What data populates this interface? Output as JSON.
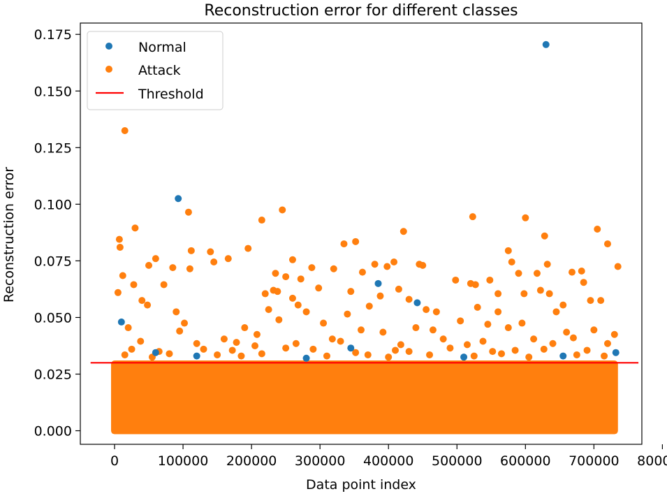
{
  "chart_data": {
    "type": "scatter",
    "title": "Reconstruction error for different classes",
    "xlabel": "Data point index",
    "ylabel": "Reconstruction error",
    "xlim": [
      -50000,
      770000
    ],
    "ylim": [
      -0.006,
      0.18
    ],
    "xticks": [
      0,
      100000,
      200000,
      300000,
      400000,
      500000,
      600000,
      700000,
      800000
    ],
    "xtick_labels": [
      "0",
      "100000",
      "200000",
      "300000",
      "400000",
      "500000",
      "600000",
      "700000",
      "800000"
    ],
    "yticks": [
      0.0,
      0.025,
      0.05,
      0.075,
      0.1,
      0.125,
      0.15,
      0.175
    ],
    "ytick_labels": [
      "0.000",
      "0.025",
      "0.050",
      "0.075",
      "0.100",
      "0.125",
      "0.150",
      "0.175"
    ],
    "grid": false,
    "legend_position": "top-left",
    "legend": [
      "Normal",
      "Attack",
      "Threshold"
    ],
    "dense_band": {
      "x": [
        0,
        730000
      ],
      "y": [
        0.0,
        0.031
      ],
      "series": "Attack"
    },
    "series": [
      {
        "name": "Normal",
        "color": "#1f77b4",
        "points": [
          [
            630000,
            0.1705
          ],
          [
            93000,
            0.1025
          ],
          [
            385000,
            0.065
          ],
          [
            10000,
            0.048
          ],
          [
            442000,
            0.0565
          ],
          [
            60000,
            0.0345
          ],
          [
            732000,
            0.0345
          ],
          [
            345000,
            0.0365
          ],
          [
            120000,
            0.033
          ],
          [
            280000,
            0.032
          ],
          [
            510000,
            0.0325
          ],
          [
            655000,
            0.033
          ]
        ]
      },
      {
        "name": "Attack",
        "color": "#ff7f0e",
        "points": [
          [
            15000,
            0.1325
          ],
          [
            245000,
            0.0975
          ],
          [
            108000,
            0.0965
          ],
          [
            215000,
            0.093
          ],
          [
            523000,
            0.0945
          ],
          [
            600000,
            0.094
          ],
          [
            30000,
            0.0895
          ],
          [
            705000,
            0.089
          ],
          [
            628000,
            0.086
          ],
          [
            422000,
            0.088
          ],
          [
            7000,
            0.0845
          ],
          [
            352000,
            0.0835
          ],
          [
            720000,
            0.0825
          ],
          [
            8000,
            0.081
          ],
          [
            195000,
            0.0805
          ],
          [
            335000,
            0.0825
          ],
          [
            112000,
            0.0795
          ],
          [
            140000,
            0.079
          ],
          [
            575000,
            0.0795
          ],
          [
            166000,
            0.076
          ],
          [
            60000,
            0.076
          ],
          [
            260000,
            0.0755
          ],
          [
            380000,
            0.0735
          ],
          [
            445000,
            0.0735
          ],
          [
            450000,
            0.073
          ],
          [
            632000,
            0.0735
          ],
          [
            735000,
            0.0725
          ],
          [
            50000,
            0.073
          ],
          [
            85000,
            0.072
          ],
          [
            110000,
            0.0715
          ],
          [
            145000,
            0.0745
          ],
          [
            288000,
            0.072
          ],
          [
            320000,
            0.0715
          ],
          [
            398000,
            0.0725
          ],
          [
            408000,
            0.0745
          ],
          [
            580000,
            0.0745
          ],
          [
            668000,
            0.07
          ],
          [
            682000,
            0.0705
          ],
          [
            12000,
            0.0685
          ],
          [
            235000,
            0.0695
          ],
          [
            250000,
            0.068
          ],
          [
            272000,
            0.067
          ],
          [
            362000,
            0.07
          ],
          [
            590000,
            0.0695
          ],
          [
            617000,
            0.0695
          ],
          [
            498000,
            0.0665
          ],
          [
            527000,
            0.0645
          ],
          [
            548000,
            0.0665
          ],
          [
            5000,
            0.061
          ],
          [
            40000,
            0.0575
          ],
          [
            220000,
            0.0605
          ],
          [
            232000,
            0.062
          ],
          [
            238000,
            0.0615
          ],
          [
            298000,
            0.063
          ],
          [
            345000,
            0.0615
          ],
          [
            388000,
            0.0595
          ],
          [
            415000,
            0.0625
          ],
          [
            520000,
            0.065
          ],
          [
            560000,
            0.0605
          ],
          [
            598000,
            0.0605
          ],
          [
            622000,
            0.062
          ],
          [
            685000,
            0.0655
          ],
          [
            28000,
            0.0645
          ],
          [
            72000,
            0.0645
          ],
          [
            260000,
            0.0585
          ],
          [
            372000,
            0.055
          ],
          [
            430000,
            0.058
          ],
          [
            530000,
            0.0545
          ],
          [
            635000,
            0.0605
          ],
          [
            655000,
            0.0555
          ],
          [
            695000,
            0.0575
          ],
          [
            710000,
            0.0575
          ],
          [
            20000,
            0.0455
          ],
          [
            48000,
            0.0555
          ],
          [
            90000,
            0.0525
          ],
          [
            95000,
            0.044
          ],
          [
            102000,
            0.0475
          ],
          [
            190000,
            0.0455
          ],
          [
            208000,
            0.0425
          ],
          [
            225000,
            0.0535
          ],
          [
            240000,
            0.049
          ],
          [
            268000,
            0.0555
          ],
          [
            280000,
            0.0525
          ],
          [
            305000,
            0.0475
          ],
          [
            340000,
            0.0515
          ],
          [
            360000,
            0.0445
          ],
          [
            392000,
            0.0435
          ],
          [
            440000,
            0.0455
          ],
          [
            455000,
            0.0535
          ],
          [
            470000,
            0.0525
          ],
          [
            465000,
            0.0445
          ],
          [
            505000,
            0.0485
          ],
          [
            545000,
            0.047
          ],
          [
            560000,
            0.0525
          ],
          [
            575000,
            0.0455
          ],
          [
            595000,
            0.0475
          ],
          [
            645000,
            0.0525
          ],
          [
            660000,
            0.0435
          ],
          [
            700000,
            0.0445
          ],
          [
            730000,
            0.0425
          ],
          [
            38000,
            0.0395
          ],
          [
            120000,
            0.0385
          ],
          [
            160000,
            0.0405
          ],
          [
            178000,
            0.039
          ],
          [
            205000,
            0.0375
          ],
          [
            265000,
            0.0385
          ],
          [
            318000,
            0.0405
          ],
          [
            330000,
            0.0395
          ],
          [
            418000,
            0.038
          ],
          [
            480000,
            0.0405
          ],
          [
            515000,
            0.038
          ],
          [
            538000,
            0.0395
          ],
          [
            612000,
            0.0405
          ],
          [
            640000,
            0.0385
          ],
          [
            670000,
            0.041
          ],
          [
            720000,
            0.0385
          ],
          [
            25000,
            0.036
          ],
          [
            65000,
            0.035
          ],
          [
            130000,
            0.036
          ],
          [
            172000,
            0.0355
          ],
          [
            250000,
            0.0365
          ],
          [
            290000,
            0.036
          ],
          [
            352000,
            0.0345
          ],
          [
            410000,
            0.0355
          ],
          [
            430000,
            0.035
          ],
          [
            490000,
            0.0365
          ],
          [
            552000,
            0.035
          ],
          [
            585000,
            0.0355
          ],
          [
            627000,
            0.036
          ],
          [
            690000,
            0.0355
          ],
          [
            15000,
            0.0335
          ],
          [
            55000,
            0.0325
          ],
          [
            80000,
            0.034
          ],
          [
            150000,
            0.0335
          ],
          [
            185000,
            0.033
          ],
          [
            215000,
            0.034
          ],
          [
            310000,
            0.033
          ],
          [
            370000,
            0.0335
          ],
          [
            400000,
            0.0325
          ],
          [
            460000,
            0.0335
          ],
          [
            525000,
            0.033
          ],
          [
            565000,
            0.034
          ],
          [
            605000,
            0.0325
          ],
          [
            675000,
            0.0335
          ],
          [
            715000,
            0.033
          ]
        ]
      },
      {
        "name": "Threshold",
        "color": "#ff0000",
        "type": "line",
        "x": [
          -35000,
          765000
        ],
        "y": [
          0.03,
          0.03
        ]
      }
    ]
  }
}
